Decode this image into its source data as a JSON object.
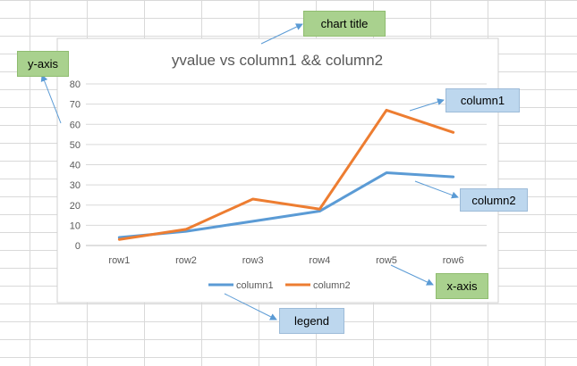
{
  "chart_data": {
    "type": "line",
    "title": "yvalue vs column1 && column2",
    "categories": [
      "row1",
      "row2",
      "row3",
      "row4",
      "row5",
      "row6"
    ],
    "ylim": [
      0,
      80
    ],
    "yticks": [
      0,
      10,
      20,
      30,
      40,
      50,
      60,
      70,
      80
    ],
    "grid": true,
    "legend_position": "bottom",
    "series": [
      {
        "name": "column1",
        "color": "#5b9bd5",
        "values": [
          4,
          7,
          12,
          17,
          36,
          34
        ]
      },
      {
        "name": "column2",
        "color": "#ed7d31",
        "values": [
          3,
          8,
          23,
          18,
          67,
          56
        ]
      }
    ]
  },
  "annotations": {
    "chart_title": "chart title",
    "y_axis": "y-axis",
    "column1": "column1",
    "column2": "column2",
    "x_axis": "x-axis",
    "legend": "legend"
  }
}
